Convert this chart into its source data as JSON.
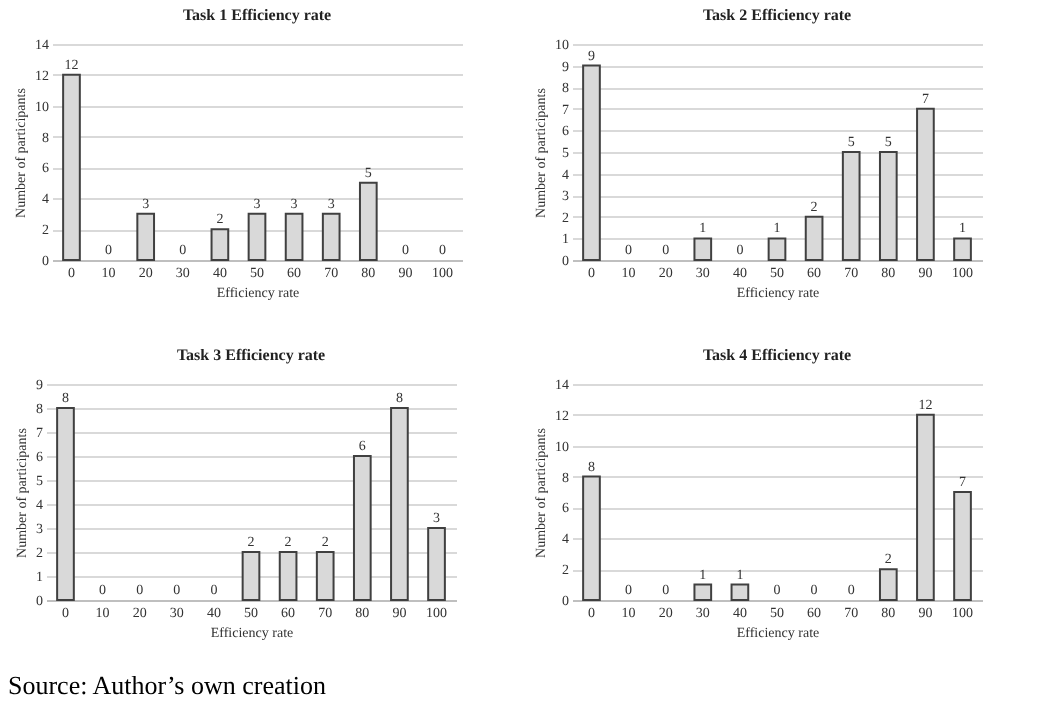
{
  "chart_data": [
    {
      "type": "bar",
      "title": "Task 1 Efficiency rate",
      "xlabel": "Efficiency rate",
      "ylabel": "Number of participants",
      "categories": [
        "0",
        "10",
        "20",
        "30",
        "40",
        "50",
        "60",
        "70",
        "80",
        "90",
        "100"
      ],
      "values": [
        12,
        0,
        3,
        0,
        2,
        3,
        3,
        3,
        5,
        0,
        0
      ],
      "color": "#d9d9d9",
      "ylim": [
        0,
        14
      ],
      "yticks": [
        0,
        2,
        4,
        6,
        8,
        10,
        12,
        14
      ],
      "grid": "y",
      "data_labels": true
    },
    {
      "type": "bar",
      "title": "Task 2 Efficiency rate",
      "xlabel": "Efficiency rate",
      "ylabel": "Number of participants",
      "categories": [
        "0",
        "10",
        "20",
        "30",
        "40",
        "50",
        "60",
        "70",
        "80",
        "90",
        "100"
      ],
      "values": [
        9,
        0,
        0,
        1,
        0,
        1,
        2,
        5,
        5,
        7,
        1
      ],
      "color": "#d9d9d9",
      "ylim": [
        0,
        10
      ],
      "yticks": [
        0,
        1,
        2,
        3,
        4,
        5,
        6,
        7,
        8,
        9,
        10
      ],
      "grid": "y",
      "data_labels": true
    },
    {
      "type": "bar",
      "title": "Task 3 Efficiency rate",
      "xlabel": "Efficiency rate",
      "ylabel": "Number of participants",
      "categories": [
        "0",
        "10",
        "20",
        "30",
        "40",
        "50",
        "60",
        "70",
        "80",
        "90",
        "100"
      ],
      "values": [
        8,
        0,
        0,
        0,
        0,
        2,
        2,
        2,
        6,
        8,
        3
      ],
      "color": "#d9d9d9",
      "ylim": [
        0,
        9
      ],
      "yticks": [
        0,
        1,
        2,
        3,
        4,
        5,
        6,
        7,
        8,
        9
      ],
      "grid": "y",
      "data_labels": true,
      "annotations": [
        "Source: Author’s own creation"
      ]
    },
    {
      "type": "bar",
      "title": "Task 4 Efficiency rate",
      "xlabel": "Efficiency rate",
      "ylabel": "Number of participants",
      "categories": [
        "0",
        "10",
        "20",
        "30",
        "40",
        "50",
        "60",
        "70",
        "80",
        "90",
        "100"
      ],
      "values": [
        8,
        0,
        0,
        1,
        1,
        0,
        0,
        0,
        2,
        12,
        7
      ],
      "color": "#d9d9d9",
      "ylim": [
        0,
        14
      ],
      "yticks": [
        0,
        2,
        4,
        6,
        8,
        10,
        12,
        14
      ],
      "grid": "y",
      "data_labels": true
    }
  ]
}
